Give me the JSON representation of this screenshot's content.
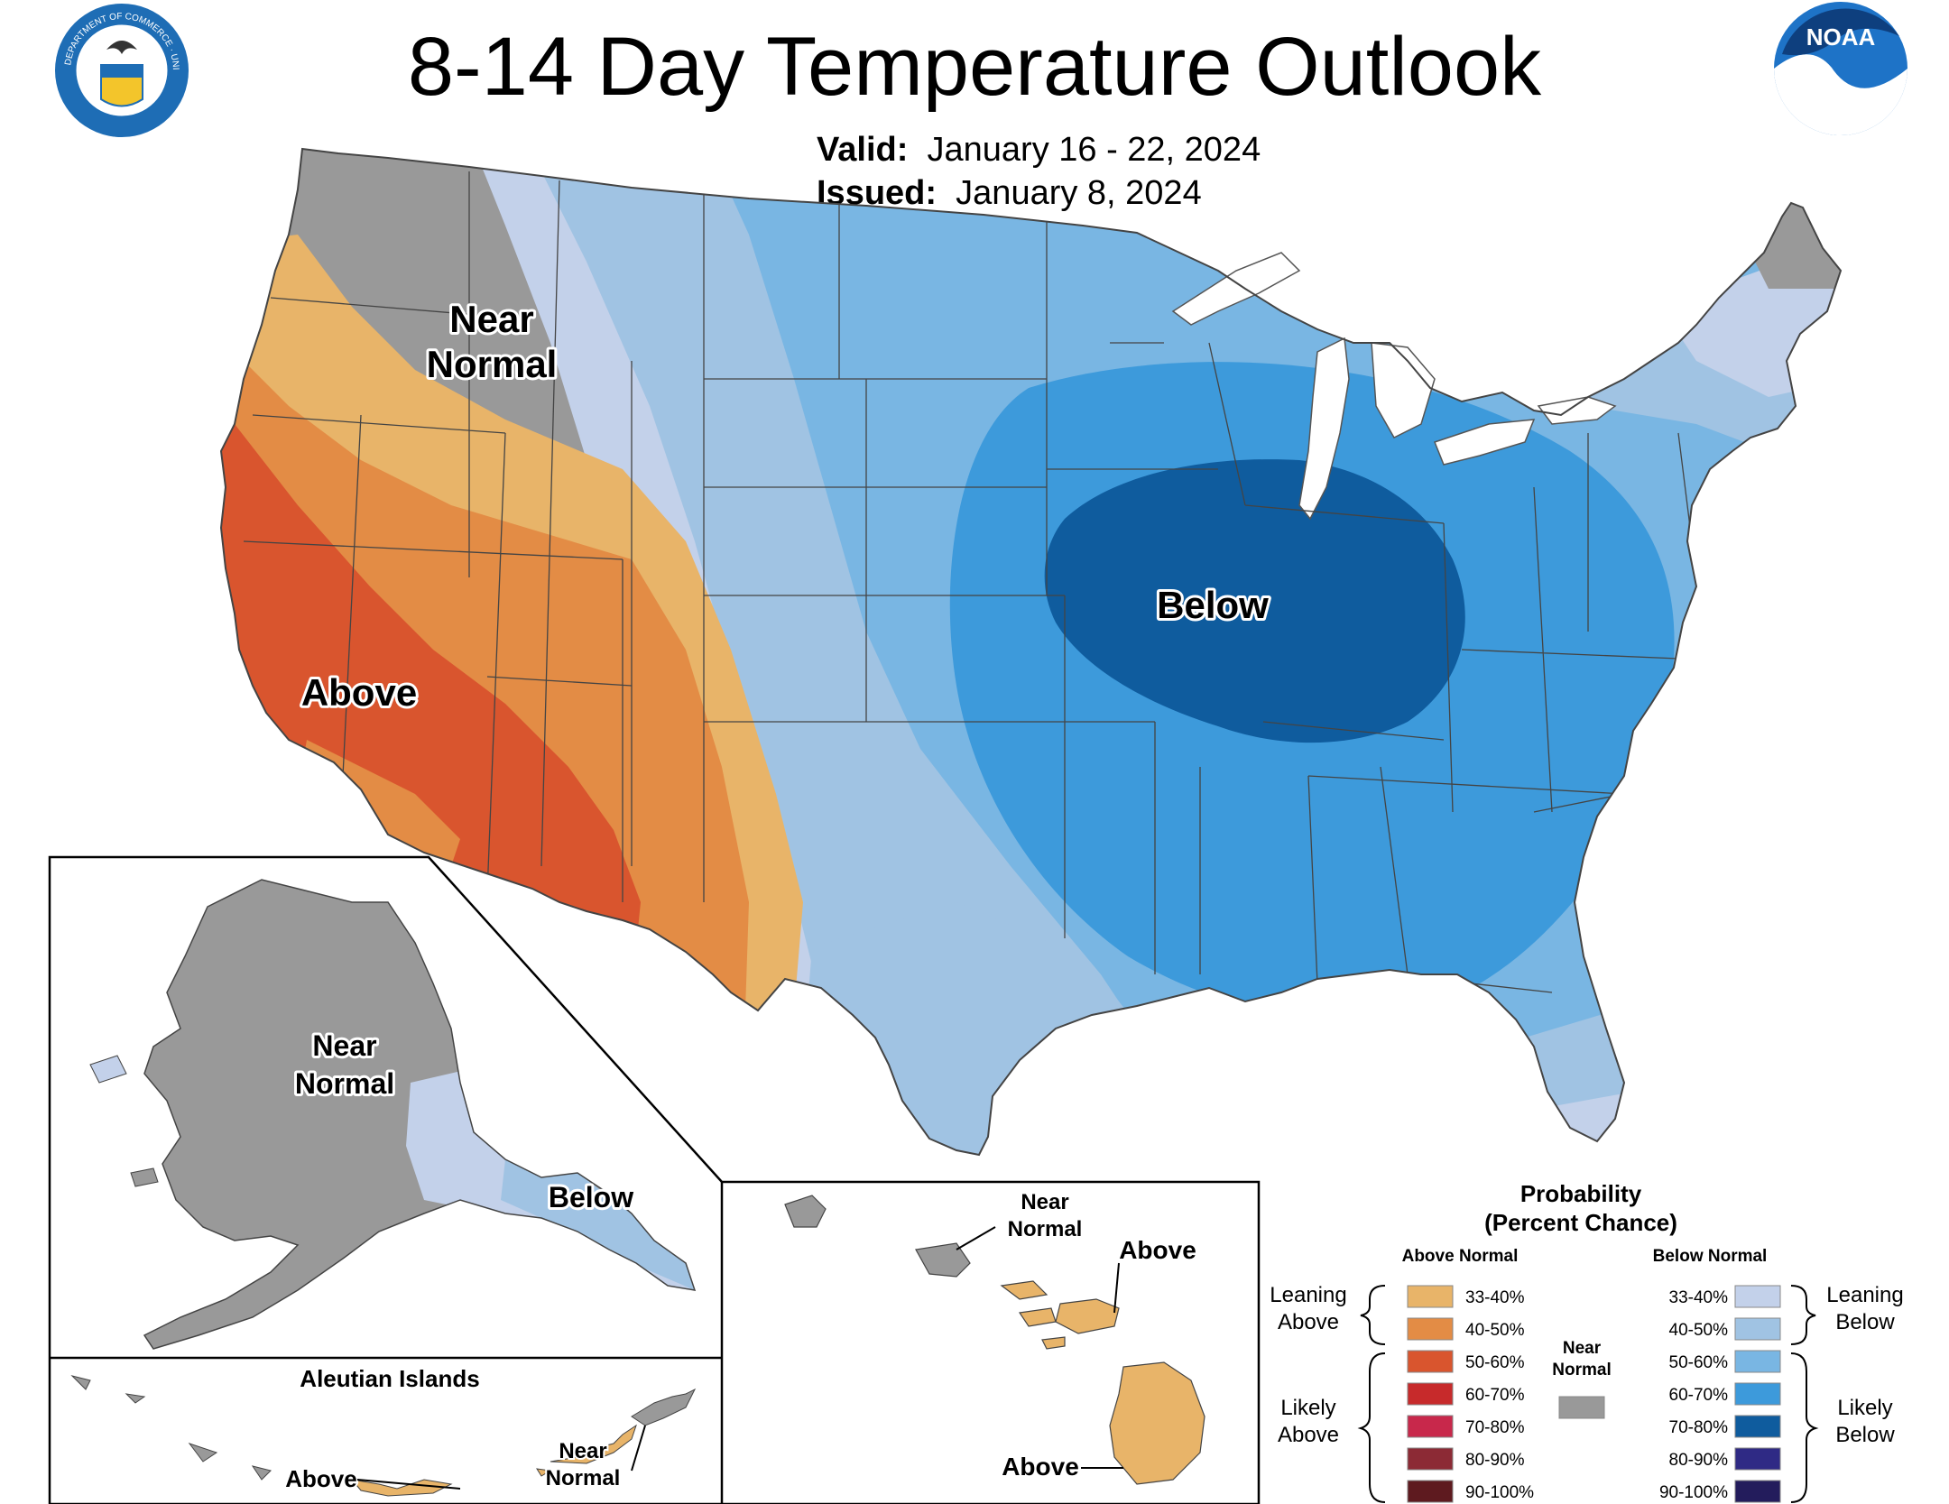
{
  "header": {
    "title": "8-14 Day Temperature Outlook",
    "valid_label": "Valid:",
    "valid_value": "January 16 - 22, 2024",
    "issued_label": "Issued:",
    "issued_value": "January 8, 2024",
    "left_seal": "department-of-commerce-seal",
    "seal_text": "DEPARTMENT OF COMMERCE · UNITED STATES OF AMERICA",
    "right_logo": "noaa-logo",
    "noaa_text": "NOAA"
  },
  "conus": {
    "near_normal_line1": "Near",
    "near_normal_line2": "Normal",
    "above": "Above",
    "below": "Below"
  },
  "alaska": {
    "near_normal_line1": "Near",
    "near_normal_line2": "Normal",
    "below": "Below"
  },
  "aleutians": {
    "title": "Aleutian Islands",
    "above": "Above",
    "near_normal_line1": "Near",
    "near_normal_line2": "Normal"
  },
  "hawaii": {
    "near_normal_line1": "Near",
    "near_normal_line2": "Normal",
    "above_north": "Above",
    "above_south": "Above"
  },
  "legend": {
    "title_line1": "Probability",
    "title_line2": "(Percent Chance)",
    "above_header": "Above Normal",
    "below_header": "Below Normal",
    "leaning_above_1": "Leaning",
    "leaning_above_2": "Above",
    "likely_above_1": "Likely",
    "likely_above_2": "Above",
    "leaning_below_1": "Leaning",
    "leaning_below_2": "Below",
    "likely_below_1": "Likely",
    "likely_below_2": "Below",
    "near_normal_1": "Near",
    "near_normal_2": "Normal",
    "near_normal_color": "#999999",
    "above_bins": [
      {
        "label": "33-40%",
        "color": "#E8B469"
      },
      {
        "label": "40-50%",
        "color": "#E38C45"
      },
      {
        "label": "50-60%",
        "color": "#D9552E"
      },
      {
        "label": "60-70%",
        "color": "#C72A2B"
      },
      {
        "label": "70-80%",
        "color": "#C8284B"
      },
      {
        "label": "80-90%",
        "color": "#8C2A35"
      },
      {
        "label": "90-100%",
        "color": "#5E1A1F"
      }
    ],
    "below_bins": [
      {
        "label": "33-40%",
        "color": "#C3D1EA"
      },
      {
        "label": "40-50%",
        "color": "#A0C3E3"
      },
      {
        "label": "50-60%",
        "color": "#79B6E3"
      },
      {
        "label": "60-70%",
        "color": "#3D9ADB"
      },
      {
        "label": "70-80%",
        "color": "#0F5C9E"
      },
      {
        "label": "80-90%",
        "color": "#2F2A85"
      },
      {
        "label": "90-100%",
        "color": "#231C5C"
      }
    ]
  }
}
